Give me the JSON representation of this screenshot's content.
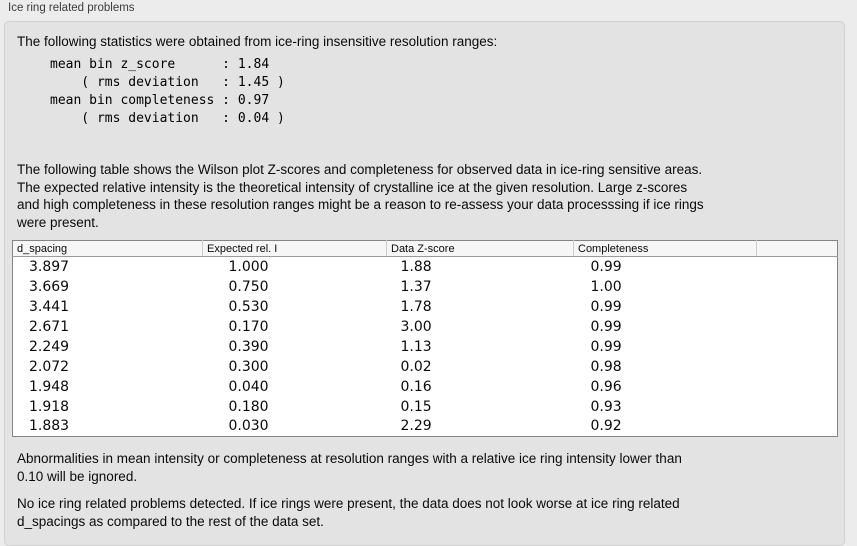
{
  "panel": {
    "title": "Ice ring related problems",
    "intro": "The following statistics were obtained from ice-ring insensitive resolution ranges:",
    "stats_block": "mean bin z_score      : 1.84\n    ( rms deviation   : 1.45 )\nmean bin completeness : 0.97\n    ( rms deviation   : 0.04 )",
    "stats": {
      "mean_bin_z_score": "1.84",
      "z_score_rms_deviation": "1.45",
      "mean_bin_completeness": "0.97",
      "completeness_rms_deviation": "0.04"
    },
    "description": "The following table shows the Wilson plot Z-scores and completeness for observed data in ice-ring sensitive areas.\nThe expected relative intensity is the theoretical intensity of crystalline ice at the given resolution. Large z-scores\nand high completeness in these resolution ranges might be a reason to re-assess your data processsing if ice rings\nwere present.",
    "note_ignore": "Abnormalities in mean intensity or completeness at resolution ranges with a relative ice ring intensity lower than\n0.10 will be ignored.",
    "conclusion": "No ice ring related problems detected. If ice rings were present, the data does not look worse at ice ring related\nd_spacings as compared to the rest of the data set."
  },
  "table": {
    "columns": [
      "d_spacing",
      "Expected rel. I",
      "Data Z-score",
      "Completeness"
    ],
    "rows": [
      [
        "3.897",
        "1.000",
        "1.88",
        "0.99"
      ],
      [
        "3.669",
        "0.750",
        "1.37",
        "1.00"
      ],
      [
        "3.441",
        "0.530",
        "1.78",
        "0.99"
      ],
      [
        "2.671",
        "0.170",
        "3.00",
        "0.99"
      ],
      [
        "2.249",
        "0.390",
        "1.13",
        "0.99"
      ],
      [
        "2.072",
        "0.300",
        "0.02",
        "0.98"
      ],
      [
        "1.948",
        "0.040",
        "0.16",
        "0.96"
      ],
      [
        "1.918",
        "0.180",
        "0.15",
        "0.93"
      ],
      [
        "1.883",
        "0.030",
        "2.29",
        "0.92"
      ]
    ]
  },
  "colors": {
    "window_background": "#ececec",
    "groupbox_background": "#e3e3e3",
    "groupbox_border": "#d0d0d0",
    "table_border": "#848484",
    "table_header_background": "#f6f6f6",
    "table_body_background": "#ffffff",
    "text": "#0a0a0a"
  }
}
